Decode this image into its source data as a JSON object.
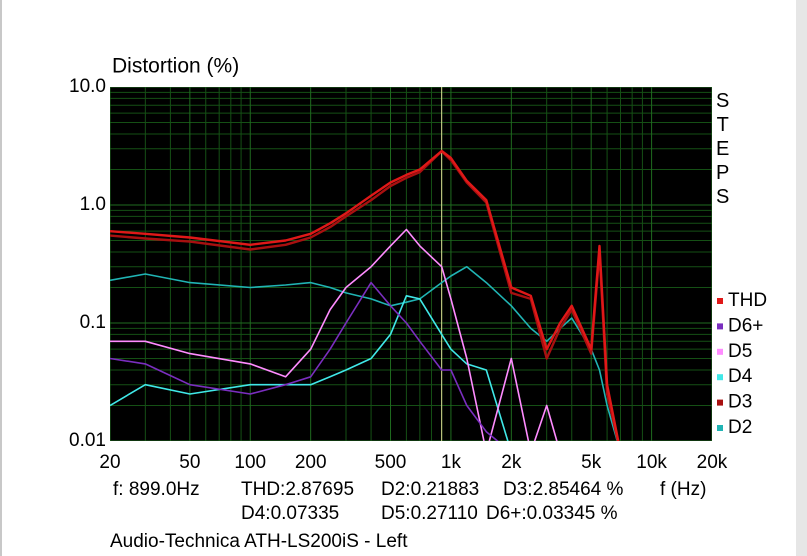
{
  "chart_data": {
    "type": "line",
    "title": "Distortion (%)",
    "x_label": "f (Hz)",
    "side_label": "STEPS",
    "subtitle": "Audio-Technica ATH-LS200iS - Left",
    "xlog": true,
    "ylog": true,
    "grid": true,
    "xlim": [
      20,
      20000
    ],
    "ylim": [
      0.01,
      10
    ],
    "xticks": [
      20,
      50,
      100,
      200,
      500,
      {
        "value": 1000,
        "label": "1k"
      },
      {
        "value": 2000,
        "label": "2k"
      },
      {
        "value": 5000,
        "label": "5k"
      },
      {
        "value": 10000,
        "label": "10k"
      },
      {
        "value": 20000,
        "label": "20k"
      }
    ],
    "yticks": [
      {
        "value": 10,
        "label": "10.0"
      },
      {
        "value": 1,
        "label": "1.0"
      },
      0.1,
      0.01
    ],
    "minor_xticks": [
      30,
      40,
      60,
      70,
      80,
      90,
      300,
      400,
      600,
      700,
      800,
      900,
      3000,
      4000,
      6000,
      7000,
      8000,
      9000
    ],
    "minor_yticks": [
      0.02,
      0.03,
      0.04,
      0.05,
      0.06,
      0.07,
      0.08,
      0.09,
      0.2,
      0.3,
      0.4,
      0.5,
      0.6,
      0.7,
      0.8,
      0.9,
      2,
      3,
      4,
      5,
      6,
      7,
      8,
      9
    ],
    "cursor_x": 899,
    "readout": {
      "f": "f: 899.0Hz",
      "thd": "THD:2.87695",
      "d2": "D2:0.21883",
      "d3": "D3:2.85464 %",
      "d4": "D4:0.07335",
      "d5": "D5:0.27110",
      "d6": "D6+:0.03345 %"
    },
    "x": [
      20,
      30,
      50,
      100,
      150,
      200,
      250,
      300,
      400,
      500,
      600,
      700,
      900,
      1000,
      1200,
      1500,
      2000,
      2500,
      3000,
      3500,
      4000,
      5000,
      5500,
      6000,
      7000
    ],
    "series": [
      {
        "name": "THD",
        "color": "#e01818",
        "values": [
          0.6,
          0.57,
          0.53,
          0.46,
          0.5,
          0.57,
          0.7,
          0.85,
          1.2,
          1.55,
          1.8,
          2,
          2.87,
          2.5,
          1.6,
          1.1,
          0.2,
          0.17,
          0.06,
          0.1,
          0.14,
          0.06,
          0.45,
          0.03,
          0.008
        ]
      },
      {
        "name": "D6+",
        "color": "#7a2ebf",
        "values": [
          0.05,
          0.045,
          0.03,
          0.025,
          0.03,
          0.035,
          0.06,
          0.1,
          0.22,
          0.14,
          0.1,
          0.07,
          0.04,
          0.04,
          0.02,
          0.012,
          0.008,
          0.008,
          0.008,
          0.008,
          0.008,
          0.008,
          0.008,
          0.008,
          0.008
        ]
      },
      {
        "name": "D5",
        "color": "#ff8cff",
        "values": [
          0.07,
          0.07,
          0.055,
          0.045,
          0.035,
          0.06,
          0.13,
          0.2,
          0.3,
          0.45,
          0.62,
          0.45,
          0.3,
          0.16,
          0.05,
          0.008,
          0.05,
          0.008,
          0.02,
          0.008,
          0.008,
          0.008,
          0.008,
          0.008,
          0.008
        ]
      },
      {
        "name": "D4",
        "color": "#40e8e8",
        "values": [
          0.02,
          0.03,
          0.025,
          0.03,
          0.03,
          0.03,
          0.035,
          0.04,
          0.05,
          0.08,
          0.17,
          0.16,
          0.08,
          0.06,
          0.045,
          0.04,
          0.008,
          0.009,
          0.008,
          0.009,
          0.008,
          0.008,
          0.008,
          0.008,
          0.008
        ]
      },
      {
        "name": "D3",
        "color": "#a81010",
        "values": [
          0.55,
          0.52,
          0.49,
          0.42,
          0.46,
          0.53,
          0.65,
          0.8,
          1.1,
          1.45,
          1.7,
          1.9,
          2.85,
          2.4,
          1.55,
          1.05,
          0.18,
          0.16,
          0.05,
          0.09,
          0.13,
          0.055,
          0.4,
          0.025,
          0.008
        ]
      },
      {
        "name": "D2",
        "color": "#20b4b4",
        "values": [
          0.23,
          0.26,
          0.22,
          0.2,
          0.21,
          0.22,
          0.2,
          0.18,
          0.16,
          0.14,
          0.15,
          0.16,
          0.22,
          0.25,
          0.3,
          0.22,
          0.14,
          0.09,
          0.07,
          0.09,
          0.11,
          0.06,
          0.04,
          0.02,
          0.008
        ]
      }
    ]
  }
}
